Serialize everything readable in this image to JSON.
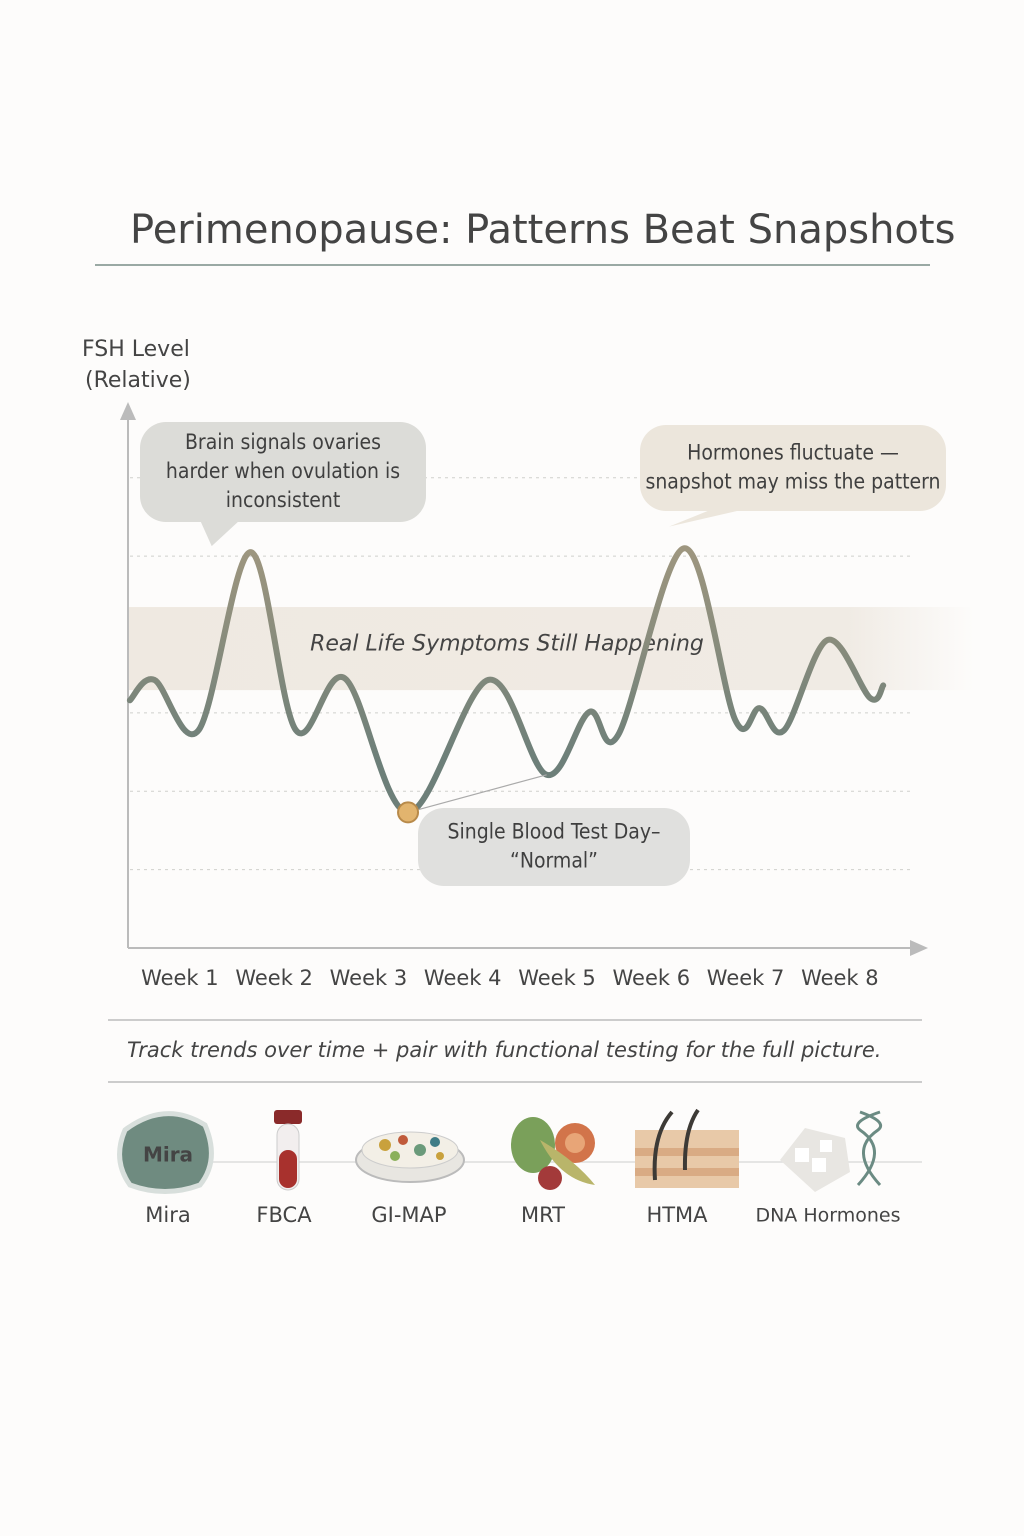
{
  "chart_data": {
    "type": "line",
    "title": "Perimenopause: Patterns Beat Snapshots",
    "y_label": [
      "FSH Level",
      "(Relative)"
    ],
    "x": [
      0.47,
      0.73,
      1.2,
      1.75,
      2.23,
      2.75,
      3.42,
      4.27,
      4.89,
      5.34,
      5.65,
      6.35,
      6.89,
      7.15,
      7.41,
      7.87,
      8.32,
      8.46
    ],
    "values": [
      3.16,
      3.42,
      2.78,
      5.05,
      2.78,
      3.44,
      1.73,
      3.42,
      2.21,
      3.01,
      2.72,
      5.1,
      2.91,
      3.06,
      2.78,
      3.93,
      3.19,
      3.35
    ],
    "colors": [
      "#a49980",
      "#6d7f79"
    ],
    "xlim": [
      0.45,
      8.85
    ],
    "ylim": [
      0,
      6.8
    ],
    "xticks": [
      {
        "value": 1,
        "label": "Week 1"
      },
      {
        "value": 2,
        "label": "Week 2"
      },
      {
        "value": 3,
        "label": "Week 3"
      },
      {
        "value": 4,
        "label": "Week 4"
      },
      {
        "value": 5,
        "label": "Week 5"
      },
      {
        "value": 6,
        "label": "Week 6"
      },
      {
        "value": 7,
        "label": "Week 7"
      },
      {
        "value": 8,
        "label": "Week 8"
      }
    ],
    "yticks": [
      1,
      2,
      3,
      5,
      6
    ],
    "grid": true,
    "highlight_band": {
      "label": "Real Life Symptoms Still Happening",
      "range": [
        3.29,
        4.35
      ]
    },
    "annotations": [
      {
        "lines": [
          "Brain signals ovaries",
          "harder when ovulation is",
          "inconsistent"
        ],
        "x": 1.55,
        "y": 5.05
      },
      {
        "lines": [
          "Hormones fluctuate —",
          "snapshot may miss the pattern"
        ],
        "x": 6.4,
        "y": 5.3
      },
      {
        "lines": [
          "Single Blood Test Day–",
          "“Normal”"
        ],
        "x": 3.42,
        "y": 1.73,
        "marker": true
      }
    ]
  },
  "footer": {
    "caption": "Track trends over time + pair with functional testing for the full picture.",
    "tests": [
      {
        "label": "Mira",
        "icon_text": "Mira"
      },
      {
        "label": "FBCA"
      },
      {
        "label": "GI-MAP"
      },
      {
        "label": "MRT"
      },
      {
        "label": "HTMA"
      },
      {
        "label": "DNA Hormones"
      }
    ]
  }
}
